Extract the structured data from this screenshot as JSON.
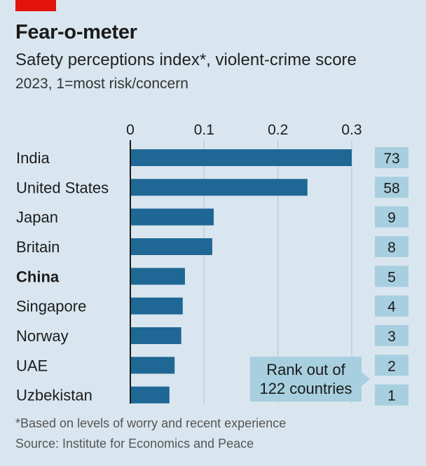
{
  "header": {
    "title": "Fear-o-meter",
    "subtitle": "Safety perceptions index*, violent-crime score",
    "subtitle2": "2023, 1=most risk/concern"
  },
  "rank_legend": {
    "line1": "Rank out of",
    "line2": "122 countries"
  },
  "footer": {
    "footnote": "*Based on levels of worry and recent experience",
    "source": "Source: Institute for Economics and Peace"
  },
  "colors": {
    "bar": "#1f6794",
    "rank_box": "#a7cfdf",
    "background": "#d9e6ef",
    "brand_red": "#e3120b"
  },
  "chart_data": {
    "type": "bar",
    "orientation": "horizontal",
    "categories": [
      "India",
      "United States",
      "Japan",
      "Britain",
      "China",
      "Singapore",
      "Norway",
      "UAE",
      "Uzbekistan"
    ],
    "highlight": "China",
    "values": [
      0.3,
      0.24,
      0.113,
      0.111,
      0.074,
      0.071,
      0.069,
      0.06,
      0.053
    ],
    "ranks": [
      "73",
      "58",
      "9",
      "8",
      "5",
      "4",
      "3",
      "2",
      "1"
    ],
    "xticks": [
      "0",
      "0.1",
      "0.2",
      "0.3"
    ],
    "xlim": [
      0,
      0.3
    ],
    "grid": true
  }
}
